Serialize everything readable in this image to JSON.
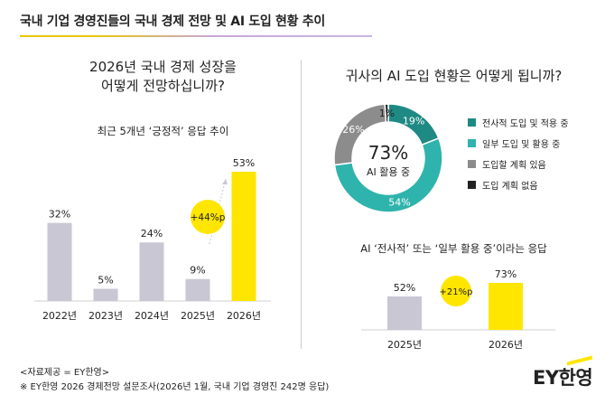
{
  "header": {
    "title": "국내 기업 경영진들의 국내 경제 전망 및 AI 도입 현황 추이"
  },
  "left_panel": {
    "title_line1": "2026년 국내 경제 성장을",
    "title_line2": "어떻게 전망하십니까?",
    "subtitle": "최근 5개년 ‘긍정적’ 응답 추이",
    "change_badge": "+44%p"
  },
  "right_top": {
    "title": "귀사의 AI 도입 현황은 어떻게 됩니까?",
    "center_value": "73%",
    "center_label": "AI 활용 중"
  },
  "right_bottom": {
    "subtitle": "AI ‘전사적’ 또는 ‘일부 활용 중’이라는 응답",
    "change_badge": "+21%p"
  },
  "footer": {
    "source": "<자료제공 = EY한영>",
    "note": "※ EY한영 2026 경제전망 설문조사(2026년 1월, 국내 기업 경영진 242명 응답)",
    "brand": "EY한영"
  },
  "colors": {
    "bar_gray": "#c9c7d3",
    "highlight": "#ffe600",
    "teal_dark": "#1f8a84",
    "teal_light": "#2fb3ad",
    "gray_dark": "#8c8c8c",
    "black": "#222222"
  },
  "chart_data": [
    {
      "type": "bar",
      "title": "최근 5개년 ‘긍정적’ 응답 추이",
      "categories": [
        "2022년",
        "2023년",
        "2024년",
        "2025년",
        "2026년"
      ],
      "values": [
        32,
        5,
        24,
        9,
        53
      ],
      "labels": [
        "32%",
        "5%",
        "24%",
        "9%",
        "53%"
      ],
      "ylim": [
        0,
        60
      ],
      "highlight_index": 4,
      "annotation": "+44%p"
    },
    {
      "type": "pie",
      "title": "귀사의 AI 도입 현황은 어떻게 됩니까?",
      "slices": [
        {
          "name": "전사적 도입 및 적용 중",
          "value": 19,
          "label": "19%",
          "color": "#1f8a84"
        },
        {
          "name": "일부 도입 및 활용 중",
          "value": 54,
          "label": "54%",
          "color": "#2fb3ad"
        },
        {
          "name": "도입할 계획 있음",
          "value": 26,
          "label": "26%",
          "color": "#8c8c8c"
        },
        {
          "name": "도입 계획 없음",
          "value": 1,
          "label": "1%",
          "color": "#222222"
        }
      ]
    },
    {
      "type": "bar",
      "title": "AI ‘전사적’ 또는 ‘일부 활용 중’이라는 응답",
      "categories": [
        "2025년",
        "2026년"
      ],
      "values": [
        52,
        73
      ],
      "labels": [
        "52%",
        "73%"
      ],
      "ylim": [
        0,
        80
      ],
      "highlight_index": 1,
      "annotation": "+21%p"
    }
  ]
}
